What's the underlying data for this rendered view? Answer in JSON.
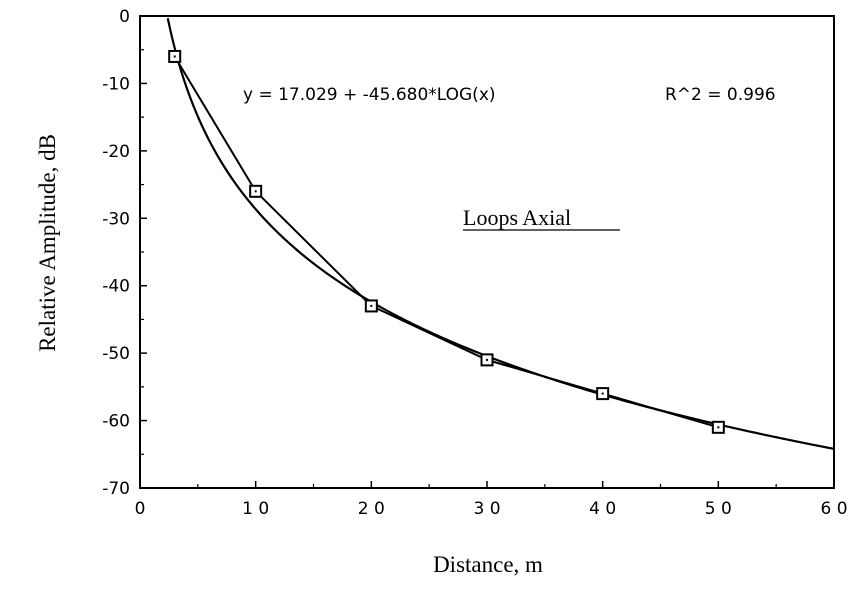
{
  "chart_data": {
    "type": "line",
    "xlabel": "Distance, m",
    "ylabel": "Relative Amplitude, dB",
    "xlim": [
      0,
      60
    ],
    "ylim": [
      -70,
      0
    ],
    "x_ticks": [
      0,
      10,
      20,
      30,
      40,
      50,
      60
    ],
    "x_tick_labels": [
      "0",
      "1 0",
      "2 0",
      "3 0",
      "4 0",
      "5 0",
      "6 0"
    ],
    "y_ticks": [
      0,
      -10,
      -20,
      -30,
      -40,
      -50,
      -60,
      -70
    ],
    "y_tick_labels": [
      "0",
      "-10",
      "-20",
      "-30",
      "-40",
      "-50",
      "-60",
      "-70"
    ],
    "grid": false,
    "series": [
      {
        "kind": "measured",
        "marker": "square",
        "x": [
          3,
          10,
          20,
          30,
          40,
          50
        ],
        "y": [
          -6,
          -26,
          -43,
          -51,
          -56,
          -61
        ]
      },
      {
        "kind": "fit",
        "equation_type": "logarithmic",
        "intercept": 17.029,
        "slope": -45.68,
        "x_range": [
          2.4,
          60
        ]
      }
    ],
    "annotations": {
      "equation": "y = 17.029 + -45.680*LOG(x)",
      "r_squared": "R^2 = 0.996",
      "label": "Loops Axial"
    }
  }
}
